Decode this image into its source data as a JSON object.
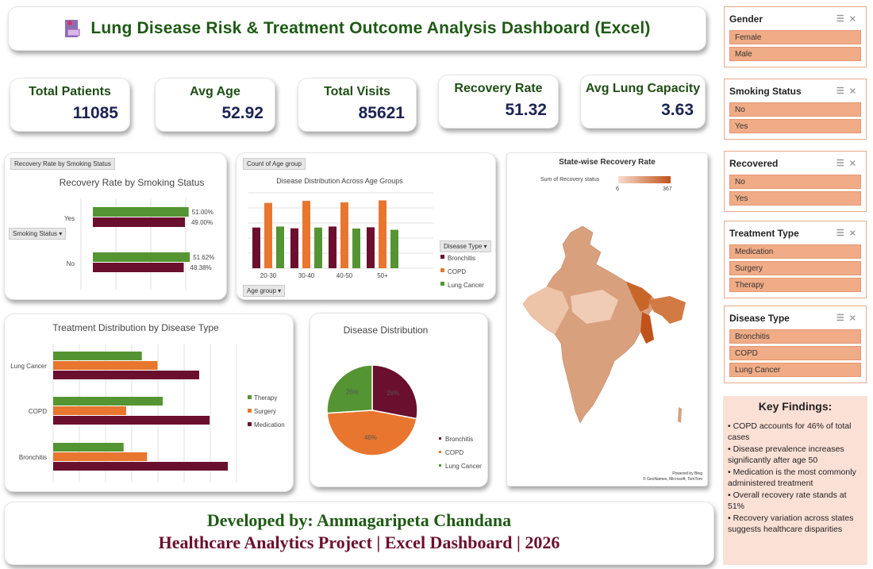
{
  "header": {
    "title": "Lung Disease Risk & Treatment Outcome Analysis Dashboard (Excel)",
    "icon": "clipboard-icon"
  },
  "kpis": [
    {
      "label": "Total Patients",
      "value": "11085"
    },
    {
      "label": "Avg Age",
      "value": "52.92"
    },
    {
      "label": "Total Visits",
      "value": "85621"
    },
    {
      "label": "Recovery Rate",
      "value": "51.32"
    },
    {
      "label": "Avg Lung Capacity",
      "value": "3.63"
    }
  ],
  "colors": {
    "maroon": "#6b0f2e",
    "orange": "#e8762f",
    "green": "#559432",
    "title_green": "#1e5a14",
    "slicer": "#f0ac87"
  },
  "chart_data": [
    {
      "type": "bar",
      "orientation": "horizontal",
      "pill": "Recovery Rate by Smoking Status",
      "title": "Recovery Rate by Smoking Status",
      "filter_label": "Smoking Status",
      "categories": [
        "Yes",
        "No"
      ],
      "series": [
        {
          "color": "#559432",
          "values": [
            51.0,
            51.62
          ],
          "labels": [
            "51.00%",
            "51.62%"
          ]
        },
        {
          "color": "#6b0f2e",
          "values": [
            49.0,
            48.38
          ],
          "labels": [
            "49.00%",
            "48.38%"
          ]
        }
      ]
    },
    {
      "type": "bar",
      "pill": "Count of Age group",
      "title": "Disease Distribution Across Age Groups",
      "axis_filter": "Age group",
      "legend_title": "Disease Type",
      "categories": [
        "20-30",
        "30-40",
        "40-50",
        "50+"
      ],
      "series": [
        {
          "name": "Bronchitis",
          "color": "#6b0f2e",
          "values": [
            810,
            795,
            830,
            815
          ]
        },
        {
          "name": "COPD",
          "color": "#e8762f",
          "values": [
            1300,
            1340,
            1310,
            1350
          ]
        },
        {
          "name": "Lung Cancer",
          "color": "#559432",
          "values": [
            830,
            810,
            790,
            765
          ]
        }
      ],
      "ylim": [
        0,
        1500
      ]
    },
    {
      "type": "bar",
      "orientation": "horizontal",
      "title": "Treatment Distribution by Disease Type",
      "categories": [
        "Lung Cancer",
        "COPD",
        "Bronchitis"
      ],
      "series": [
        {
          "name": "Therapy",
          "color": "#559432",
          "values": [
            34,
            42,
            27
          ]
        },
        {
          "name": "Surgery",
          "color": "#e8762f",
          "values": [
            40,
            28,
            36
          ]
        },
        {
          "name": "Medication",
          "color": "#6b0f2e",
          "values": [
            56,
            60,
            67
          ]
        }
      ],
      "xlim": [
        0,
        70
      ]
    },
    {
      "type": "pie",
      "title": "Disease Distribution",
      "categories": [
        "Bronchitis",
        "COPD",
        "Lung Cancer"
      ],
      "values": [
        28,
        46,
        26
      ],
      "labels": [
        "28%",
        "46%",
        "26%"
      ],
      "colors": [
        "#6b0f2e",
        "#e8762f",
        "#559432"
      ]
    }
  ],
  "map": {
    "title": "State-wise Recovery Rate",
    "legend_label": "Sum of Recovery status",
    "min": "6",
    "max": "367",
    "credit1": "Powered by Bing",
    "credit2": "© GeoNames, Microsoft, TomTom"
  },
  "slicers": [
    {
      "title": "Gender",
      "items": [
        "Female",
        "Male"
      ]
    },
    {
      "title": "Smoking Status",
      "items": [
        "No",
        "Yes"
      ]
    },
    {
      "title": "Recovered",
      "items": [
        "No",
        "Yes"
      ]
    },
    {
      "title": "Treatment Type",
      "items": [
        "Medication",
        "Surgery",
        "Therapy"
      ]
    },
    {
      "title": "Disease Type",
      "items": [
        "Bronchitis",
        "COPD",
        "Lung Cancer"
      ]
    }
  ],
  "findings": {
    "title": "Key Findings:",
    "items": [
      "• COPD accounts for 46% of total cases",
      "• Disease prevalence increases significantly after age 50",
      "• Medication is the most commonly administered treatment",
      "• Overall recovery rate stands at 51%",
      "• Recovery variation across states suggests healthcare disparities"
    ]
  },
  "footer": {
    "line1": "Developed by: Ammagaripeta Chandana",
    "line2": "Healthcare Analytics Project | Excel Dashboard | 2026"
  }
}
